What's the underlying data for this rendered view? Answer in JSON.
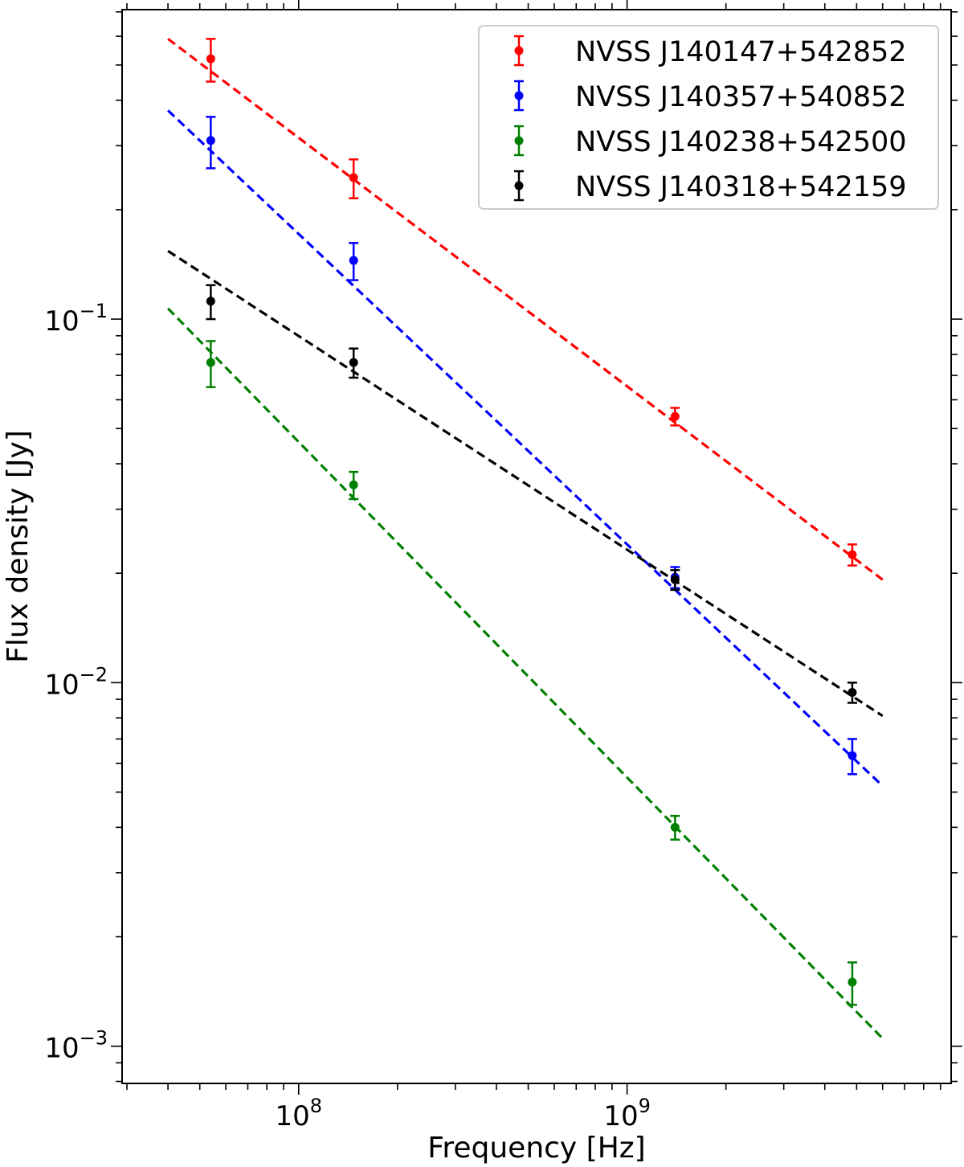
{
  "chart_data": {
    "type": "scatter",
    "title": "",
    "xlabel": "Frequency [Hz]",
    "ylabel": "Flux density [Jy]",
    "xscale": "log",
    "yscale": "log",
    "xlim": [
      29000000.0,
      9700000000.0
    ],
    "ylim": [
      0.00079,
      0.71
    ],
    "legend_position": "top-right",
    "grid": false,
    "x_ticks": [
      {
        "value": 100000000.0,
        "base": "10",
        "exp": "8"
      },
      {
        "value": 1000000000.0,
        "base": "10",
        "exp": "9"
      }
    ],
    "y_ticks": [
      {
        "value": 0.1,
        "base": "10",
        "exp": "−1"
      },
      {
        "value": 0.01,
        "base": "10",
        "exp": "−2"
      },
      {
        "value": 0.001,
        "base": "10",
        "exp": "−3"
      }
    ],
    "fit_range": [
      40000000.0,
      6000000000.0
    ],
    "series": [
      {
        "name": "NVSS J140147+542852",
        "color": "#ff0000",
        "points": [
          {
            "x": 54000000.0,
            "y": 0.52,
            "err": 0.07
          },
          {
            "x": 147000000.0,
            "y": 0.245,
            "err": 0.03
          },
          {
            "x": 1400000000.0,
            "y": 0.054,
            "err": 0.003
          },
          {
            "x": 4850000000.0,
            "y": 0.0225,
            "err": 0.0015
          }
        ],
        "fit": {
          "y_at_start": 0.59,
          "y_at_end": 0.0192
        }
      },
      {
        "name": "NVSS J140357+540852",
        "color": "#0000ff",
        "points": [
          {
            "x": 54000000.0,
            "y": 0.31,
            "err": 0.05
          },
          {
            "x": 147000000.0,
            "y": 0.145,
            "err": 0.017
          },
          {
            "x": 1400000000.0,
            "y": 0.0195,
            "err": 0.0013
          },
          {
            "x": 4850000000.0,
            "y": 0.0063,
            "err": 0.0007
          }
        ],
        "fit": {
          "y_at_start": 0.375,
          "y_at_end": 0.0052
        }
      },
      {
        "name": "NVSS J140238+542500",
        "color": "#008000",
        "points": [
          {
            "x": 54000000.0,
            "y": 0.076,
            "err": 0.011
          },
          {
            "x": 147000000.0,
            "y": 0.035,
            "err": 0.003
          },
          {
            "x": 1400000000.0,
            "y": 0.004,
            "err": 0.0003
          },
          {
            "x": 4850000000.0,
            "y": 0.0015,
            "err": 0.0002
          }
        ],
        "fit": {
          "y_at_start": 0.107,
          "y_at_end": 0.00105
        }
      },
      {
        "name": "NVSS J140318+542159",
        "color": "#000000",
        "points": [
          {
            "x": 54000000.0,
            "y": 0.112,
            "err": 0.012
          },
          {
            "x": 147000000.0,
            "y": 0.076,
            "err": 0.007
          },
          {
            "x": 1400000000.0,
            "y": 0.0192,
            "err": 0.0012
          },
          {
            "x": 4850000000.0,
            "y": 0.0094,
            "err": 0.0006
          }
        ],
        "fit": {
          "y_at_start": 0.154,
          "y_at_end": 0.0081
        }
      }
    ]
  }
}
